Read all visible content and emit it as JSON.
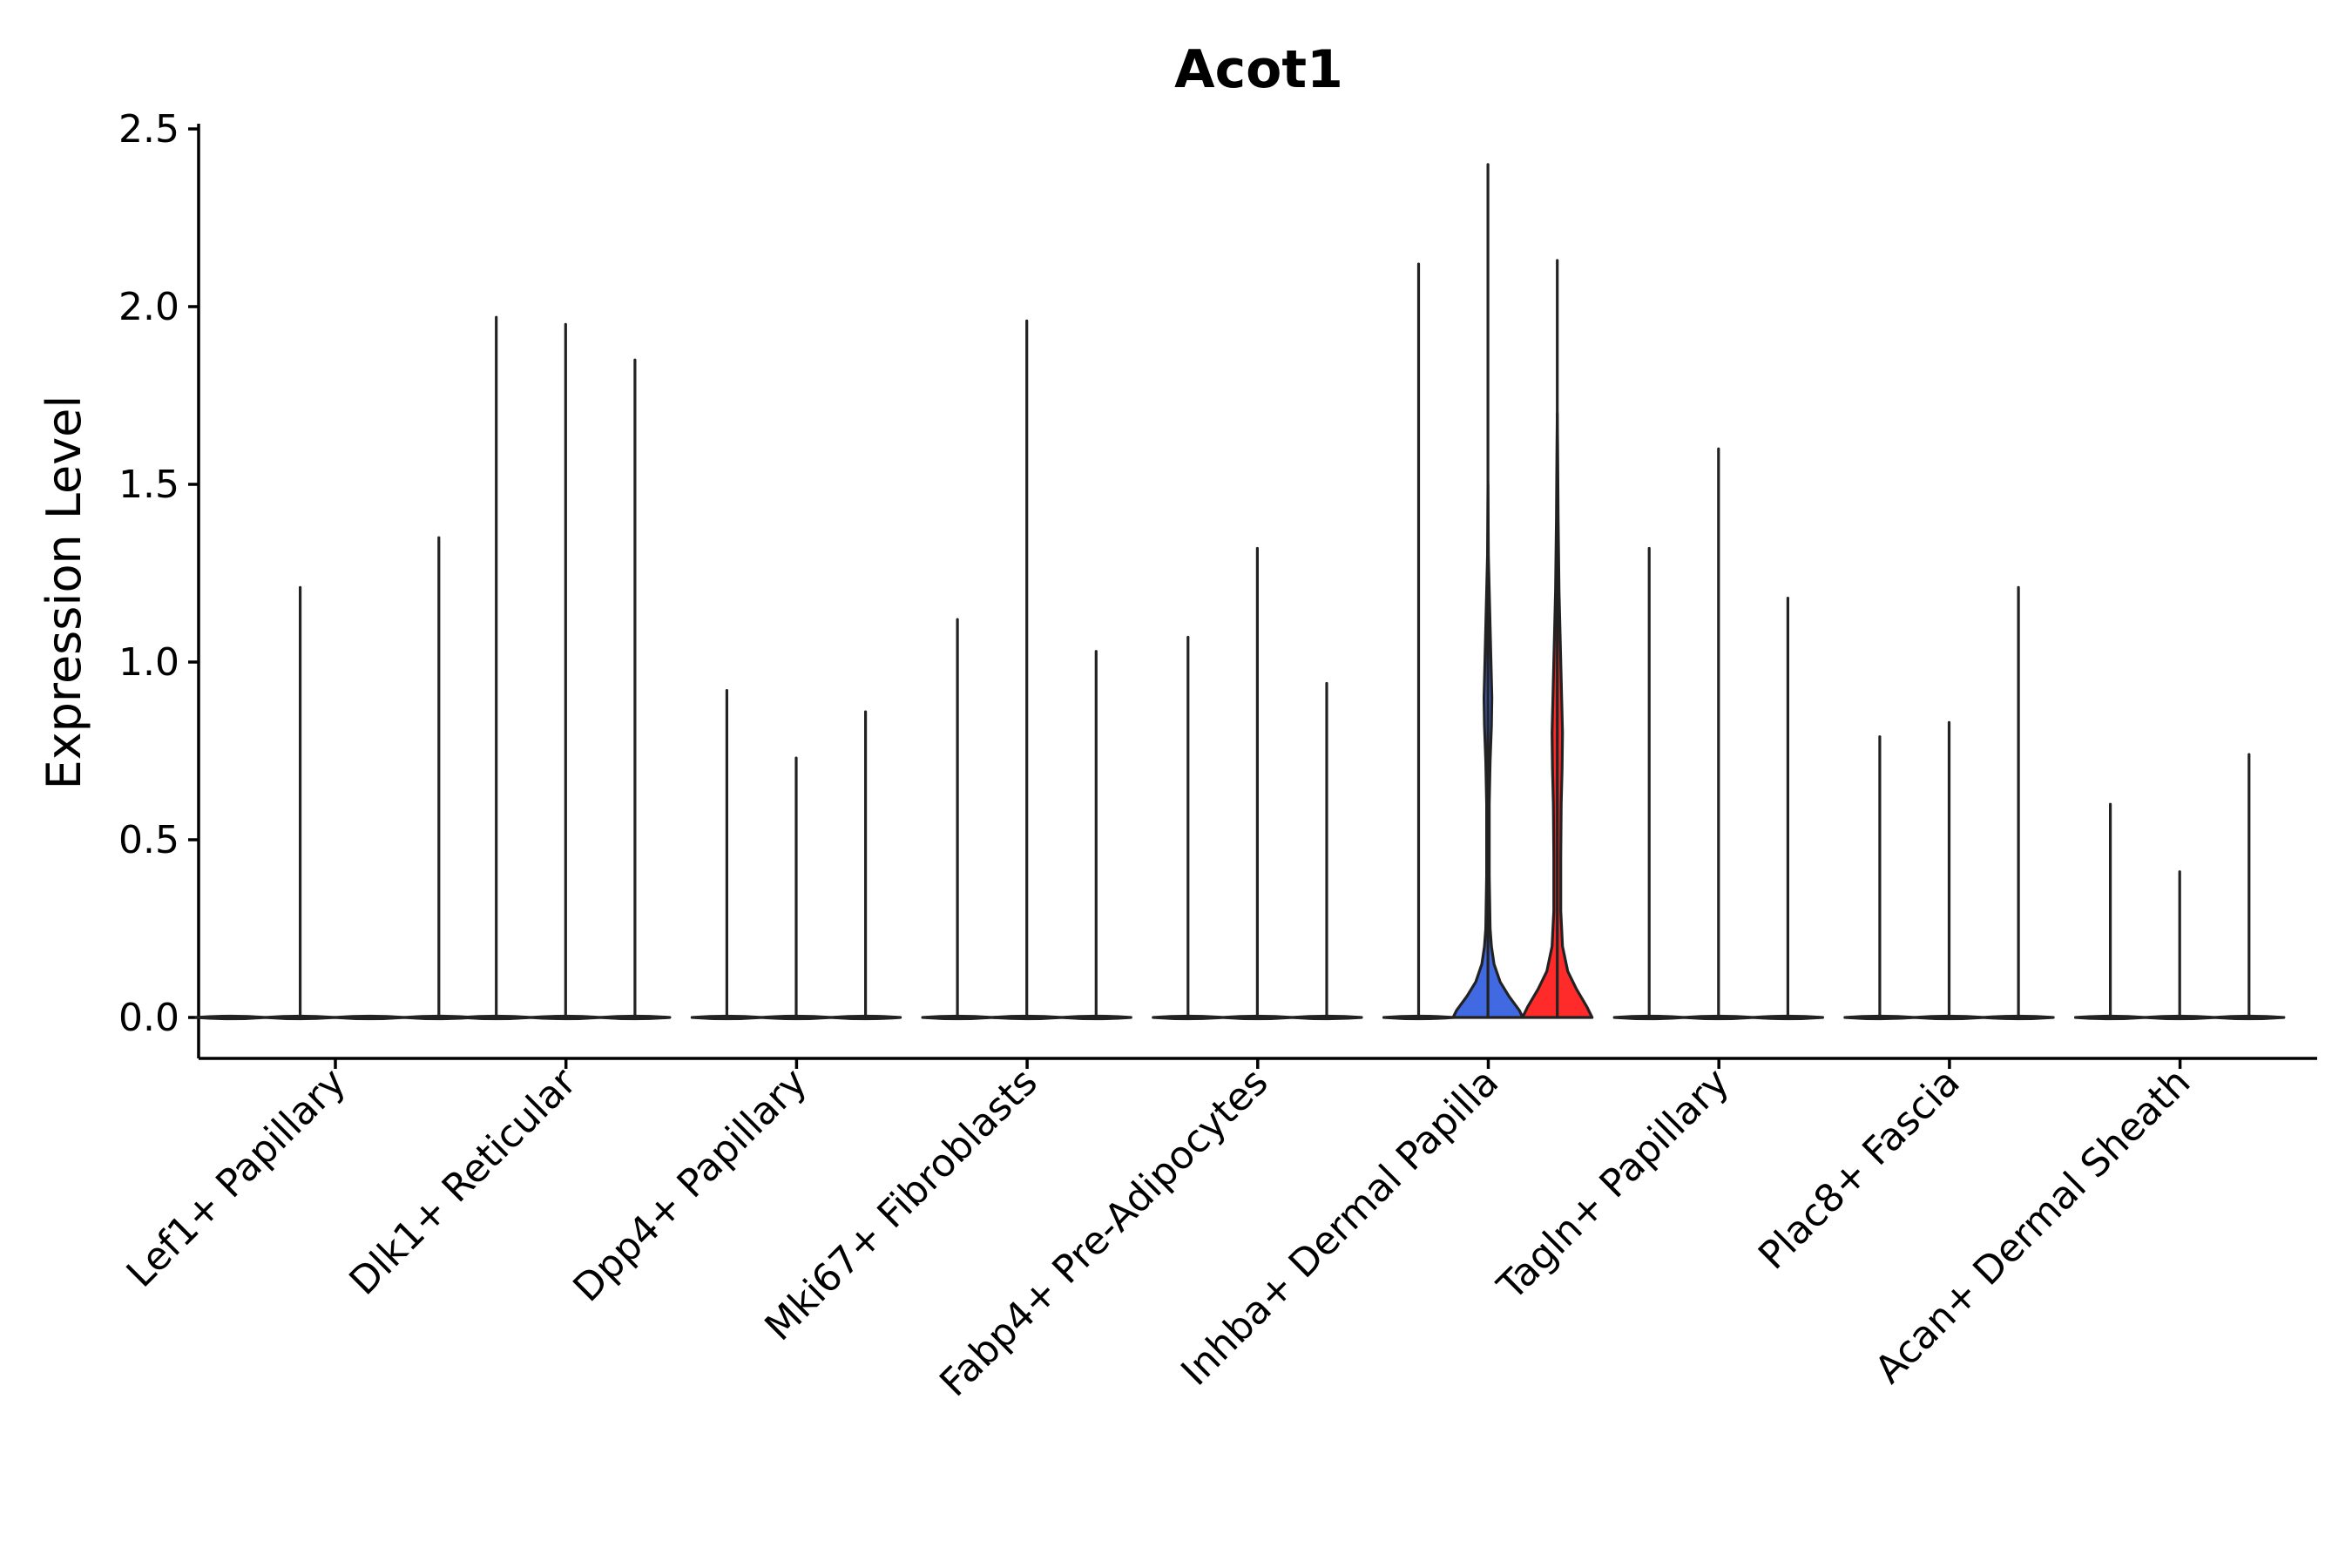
{
  "chart_data": {
    "type": "violin",
    "title": "Acot1",
    "xlabel": "",
    "ylabel": "Expression Level",
    "ylim": [
      -0.12,
      2.5
    ],
    "yticks": [
      "0.0",
      "0.5",
      "1.0",
      "1.5",
      "2.0",
      "2.5"
    ],
    "categories": [
      "Lef1+ Papillary",
      "Dlk1+ Reticular",
      "Dpp4+ Papillary",
      "Mki67+ Fibroblasts",
      "Fabp4+ Pre-Adipocytes",
      "Inhba+ Dermal Papilla",
      "Tagln+ Papillary",
      "Plac8+ Fascia",
      "Acan+ Dermal Sheath"
    ],
    "max_values": [
      [
        0.0,
        1.21,
        0.0,
        1.35
      ],
      [
        1.97,
        1.95,
        1.85
      ],
      [
        0.92,
        0.73,
        0.86
      ],
      [
        1.12,
        1.96,
        1.03
      ],
      [
        1.07,
        1.32,
        0.94
      ],
      [
        2.12,
        2.4,
        2.13
      ],
      [
        1.32,
        1.6,
        1.18
      ],
      [
        0.79,
        0.83,
        1.21
      ],
      [
        0.6,
        0.41,
        0.74
      ]
    ],
    "highlighted_violins": [
      {
        "category": "Inhba+ Dermal Papilla",
        "index": 1,
        "color": "#4169E1"
      },
      {
        "category": "Inhba+ Dermal Papilla",
        "index": 2,
        "color": "#FF2A2A"
      }
    ],
    "default_fill": "#ffffff",
    "grid": false,
    "legend": "none"
  }
}
